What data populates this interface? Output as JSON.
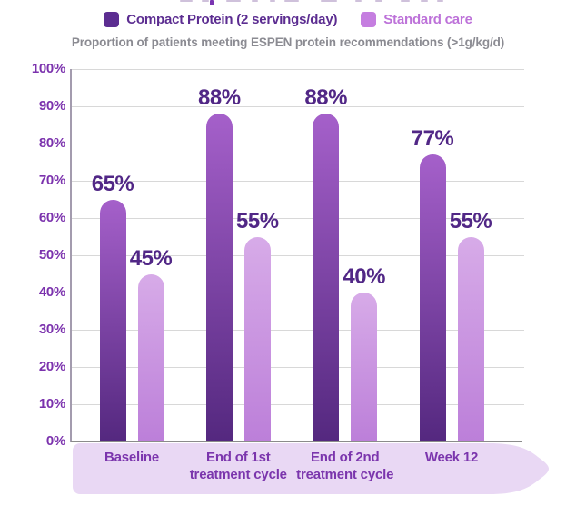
{
  "subtitle": "Proportion of patients meeting ESPEN protein recommendations (>1g/kg/d)",
  "legend": {
    "items": [
      {
        "label": "Compact Protein (2 servings/day)",
        "color": "#5c2d91",
        "text_color": "#5c2d91"
      },
      {
        "label": "Standard care",
        "color": "#c57ee0",
        "text_color": "#bd72d9"
      }
    ]
  },
  "colors": {
    "dark_bar_top": "#a560ca",
    "dark_bar_bottom": "#54287f",
    "light_bar_top": "#d7abe8",
    "light_bar_bottom": "#bc7fd9",
    "value_label": "#512786",
    "axis_tick_label": "#7b32ad",
    "x_category_label": "#7b35ad",
    "subtitle_text": "#8b8b92",
    "gridline": "#d8d8d8",
    "y_axis_line": "#a39bae",
    "x_axis_line": "#8b8b8b",
    "band_fill": "#e9d8f4",
    "title_fragment_purple": "#7a35b2",
    "title_fragment_faint": "#c3b2d2"
  },
  "chart_data": {
    "type": "bar",
    "title": "",
    "subtitle": "Proportion of patients meeting ESPEN protein recommendations (>1g/kg/d)",
    "categories": [
      "Baseline",
      "End of 1st\ntreatment cycle",
      "End of 2nd\ntreatment cycle",
      "Week 12"
    ],
    "series": [
      {
        "name": "Compact Protein (2 servings/day)",
        "values": [
          65,
          88,
          88,
          77
        ],
        "labels": [
          "65%",
          "88%",
          "88%",
          "77%"
        ]
      },
      {
        "name": "Standard care",
        "values": [
          45,
          55,
          40,
          55
        ],
        "labels": [
          "45%",
          "55%",
          "40%",
          "55%"
        ]
      }
    ],
    "xlabel": "",
    "ylabel": "",
    "ylim": [
      0,
      100
    ],
    "ytick_step": 10,
    "ytick_labels": [
      "0%",
      "10%",
      "20%",
      "30%",
      "40%",
      "50%",
      "60%",
      "70%",
      "80%",
      "90%",
      "100%"
    ],
    "grid": true,
    "legend_position": "top"
  }
}
